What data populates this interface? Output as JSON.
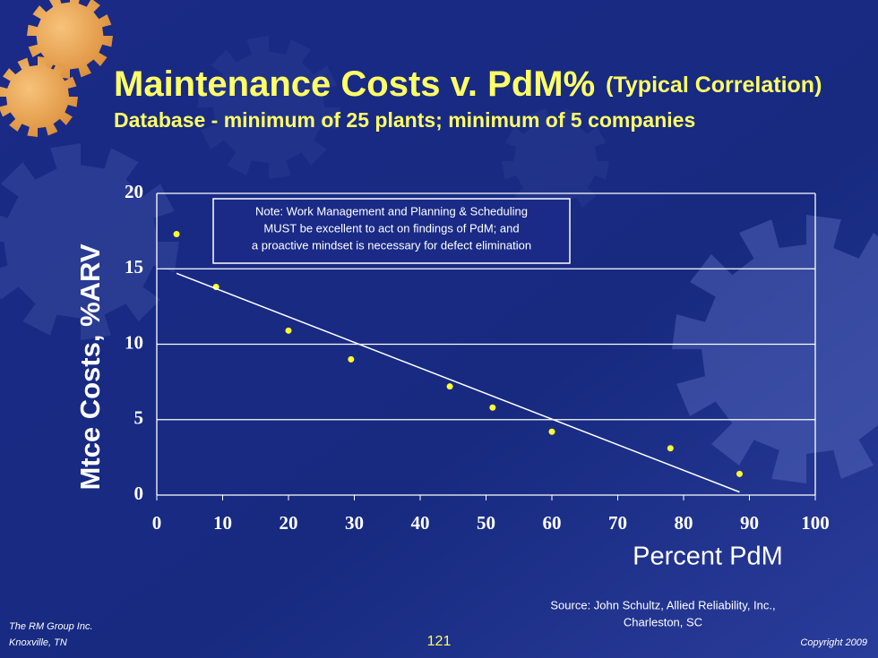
{
  "chart_data": {
    "type": "scatter",
    "title": "Maintenance Costs v. PdM%",
    "title_note": "(Typical Correlation)",
    "subtitle": "Database - minimum of 25 plants; minimum of 5 companies",
    "xlabel": "Percent PdM",
    "ylabel": "Mtce Costs, %ARV",
    "annotation": [
      "Note: Work Management and Planning & Scheduling",
      "MUST be excellent to act on findings of PdM; and",
      "a proactive mindset is necessary for defect elimination"
    ],
    "source": [
      "Source: John Schultz, Allied Reliability, Inc.,",
      "Charleston, SC"
    ],
    "xlim": [
      0,
      100
    ],
    "xticks": [
      0,
      10,
      20,
      30,
      40,
      50,
      60,
      70,
      80,
      90,
      100
    ],
    "ylim": [
      0,
      20
    ],
    "yticks": [
      0,
      5,
      10,
      15,
      20
    ],
    "grid": true,
    "series": [
      {
        "type": "scatter",
        "color": "#ffff33",
        "x": [
          3,
          9,
          20,
          29.5,
          44.5,
          51,
          60,
          78,
          88.5
        ],
        "values": [
          17.3,
          13.8,
          10.9,
          9.0,
          7.2,
          5.8,
          4.2,
          3.1,
          1.4
        ]
      },
      {
        "type": "line",
        "color": "#ffffff",
        "x": [
          3,
          88.5
        ],
        "values": [
          14.7,
          0.2
        ]
      }
    ]
  },
  "footer": {
    "left": [
      "The RM Group Inc.",
      "Knoxville, TN"
    ],
    "page": "121",
    "right": "Copyright 2009"
  }
}
